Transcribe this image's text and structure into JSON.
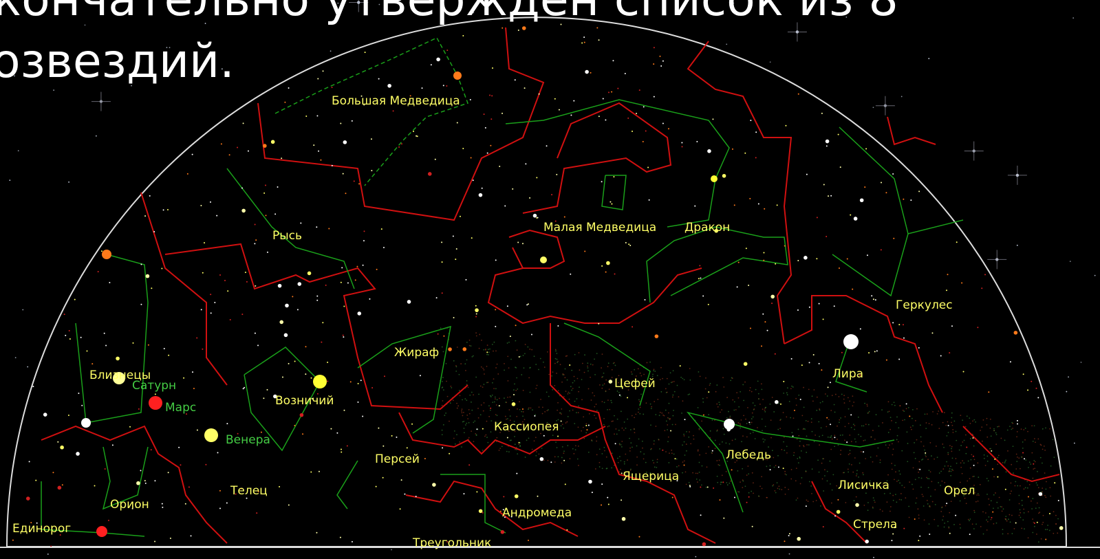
{
  "heading": {
    "lines": [
      "кончательно утвержден список из 8",
      "озвездий."
    ]
  },
  "labels": [
    "Большая Медведица",
    "Рысь",
    "Малая Медведица",
    "Дракон",
    "Геркулес",
    "Близнецы",
    "Сатурн",
    "Марс",
    "Возничий",
    "Жираф",
    "Цефей",
    "Лира",
    "Венера",
    "Кассиопея",
    "Персей",
    "Лебедь",
    "Телец",
    "Ящерица",
    "Лисичка",
    "Орел",
    "Орион",
    "Андромеда",
    "Единорог",
    "Стрела",
    "Треугольник"
  ]
}
